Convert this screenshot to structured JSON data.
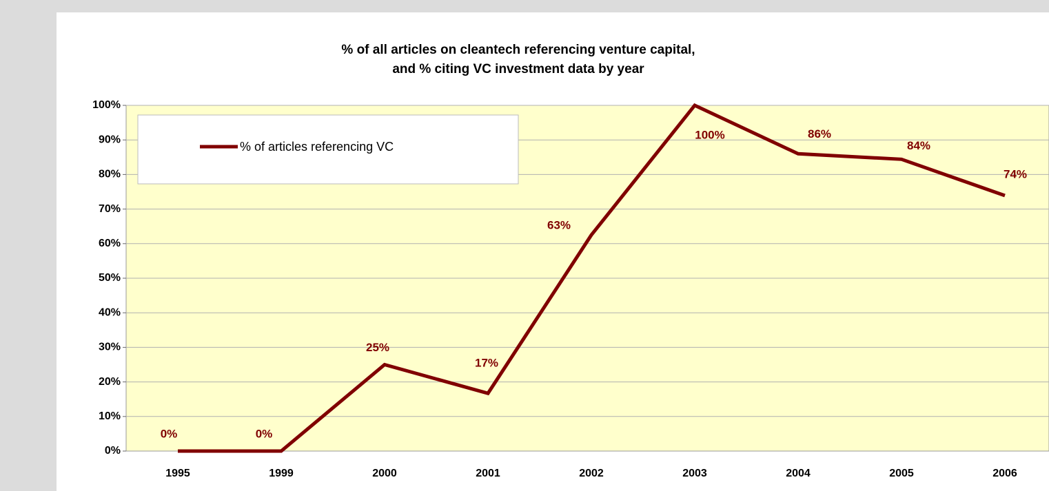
{
  "chart_data": {
    "type": "line",
    "title": [
      "% of all articles on cleantech referencing venture capital,",
      "and % citing VC investment data by year"
    ],
    "categories": [
      "1995",
      "1999",
      "2000",
      "2001",
      "2002",
      "2003",
      "2004",
      "2005",
      "2006"
    ],
    "series": [
      {
        "name": "% of articles referencing VC",
        "color": "#800000",
        "values": [
          0,
          0,
          25,
          16.7,
          62.5,
          100,
          86,
          84.4,
          73.9
        ],
        "value_labels": [
          "0%",
          "0%",
          "25%",
          "17%",
          "63%",
          "100%",
          "86%",
          "84%",
          "74%"
        ]
      }
    ],
    "ylim": [
      0,
      100
    ],
    "yticks": [
      {
        "value": 0,
        "label": "0%"
      },
      {
        "value": 10,
        "label": "10%"
      },
      {
        "value": 20,
        "label": "20%"
      },
      {
        "value": 30,
        "label": "30%"
      },
      {
        "value": 40,
        "label": "40%"
      },
      {
        "value": 50,
        "label": "50%"
      },
      {
        "value": 60,
        "label": "60%"
      },
      {
        "value": 70,
        "label": "70%"
      },
      {
        "value": 80,
        "label": "80%"
      },
      {
        "value": 90,
        "label": "90%"
      },
      {
        "value": 100,
        "label": "100%"
      }
    ],
    "grid": true,
    "legend": "upper left"
  }
}
